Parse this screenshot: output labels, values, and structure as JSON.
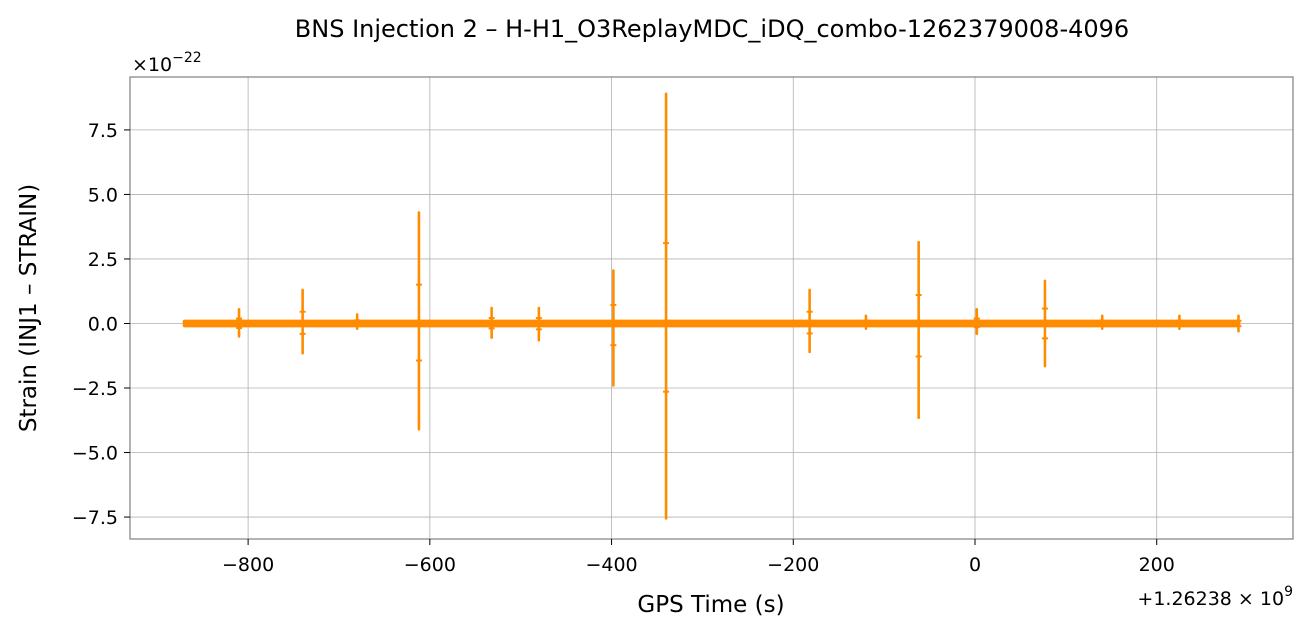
{
  "chart_data": {
    "type": "line",
    "title": "BNS Injection 2 – H-H1_O3ReplayMDC_iDQ_combo-1262379008-4096",
    "xlabel": "GPS Time (s)",
    "ylabel": "Strain (INJ1 – STRAIN)",
    "x_offset_label": "+1.26238 × 10",
    "x_offset_exponent": "9",
    "y_multiplier_label": "×10",
    "y_multiplier_exponent": "−22",
    "xlim": [
      -930,
      350
    ],
    "ylim": [
      -8.35,
      9.55
    ],
    "x_ticks": [
      {
        "value": -800,
        "label": "−800"
      },
      {
        "value": -600,
        "label": "−600"
      },
      {
        "value": -400,
        "label": "−400"
      },
      {
        "value": -200,
        "label": "−200"
      },
      {
        "value": 0,
        "label": "0"
      },
      {
        "value": 200,
        "label": "200"
      }
    ],
    "y_ticks": [
      {
        "value": 7.5,
        "label": "7.5"
      },
      {
        "value": 5.0,
        "label": "5.0"
      },
      {
        "value": 2.5,
        "label": "2.5"
      },
      {
        "value": 0.0,
        "label": "0.0"
      },
      {
        "value": -2.5,
        "label": "−2.5"
      },
      {
        "value": -5.0,
        "label": "−5.0"
      },
      {
        "value": -7.5,
        "label": "−7.5"
      }
    ],
    "grid": true,
    "series": [
      {
        "color": "#ff8c00",
        "x_range": [
          -872,
          292
        ],
        "baseline_amplitude": 0.15,
        "spikes": [
          {
            "x": -810,
            "ymax": 0.55,
            "ymin": -0.5
          },
          {
            "x": -740,
            "ymax": 1.3,
            "ymin": -1.15
          },
          {
            "x": -680,
            "ymax": 0.35,
            "ymin": -0.2
          },
          {
            "x": -612,
            "ymax": 4.3,
            "ymin": -4.1
          },
          {
            "x": -532,
            "ymax": 0.6,
            "ymin": -0.55
          },
          {
            "x": -480,
            "ymax": 0.6,
            "ymin": -0.65
          },
          {
            "x": -398,
            "ymax": 2.05,
            "ymin": -2.4
          },
          {
            "x": -340,
            "ymax": 8.9,
            "ymin": -7.55
          },
          {
            "x": -182,
            "ymax": 1.3,
            "ymin": -1.1
          },
          {
            "x": -120,
            "ymax": 0.3,
            "ymin": -0.2
          },
          {
            "x": -62,
            "ymax": 3.15,
            "ymin": -3.65
          },
          {
            "x": 2,
            "ymax": 0.55,
            "ymin": -0.4
          },
          {
            "x": 77,
            "ymax": 1.65,
            "ymin": -1.65
          },
          {
            "x": 140,
            "ymax": 0.3,
            "ymin": -0.2
          },
          {
            "x": 225,
            "ymax": 0.3,
            "ymin": -0.2
          },
          {
            "x": 290,
            "ymax": 0.3,
            "ymin": -0.3
          }
        ]
      }
    ]
  }
}
